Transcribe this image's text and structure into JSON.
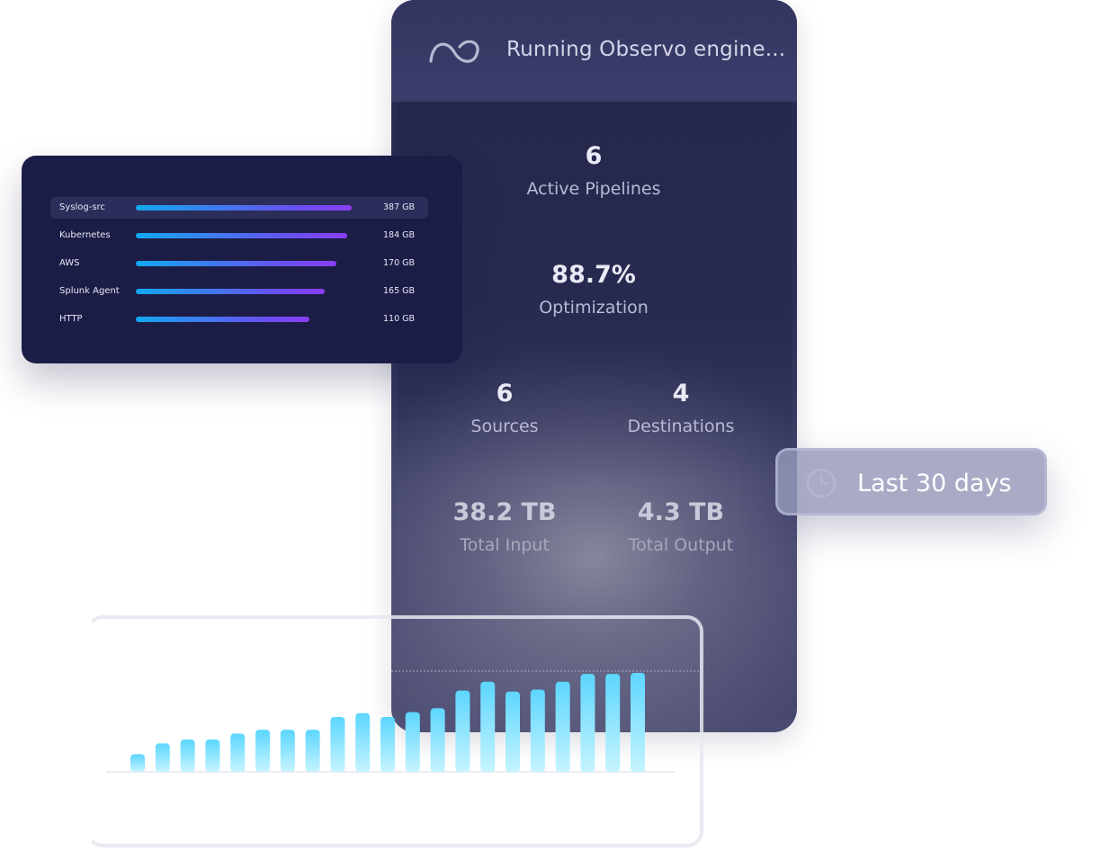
{
  "engine": {
    "title": "Running Observo engine...",
    "logo_icon": "infinity-wave-icon",
    "stats": {
      "active_pipelines": {
        "value": "6",
        "label": "Active Pipelines"
      },
      "optimization": {
        "value": "88.7%",
        "label": "Optimization"
      },
      "sources": {
        "value": "6",
        "label": "Sources"
      },
      "destinations": {
        "value": "4",
        "label": "Destinations"
      },
      "total_input": {
        "value": "38.2 TB",
        "label": "Total Input"
      },
      "total_output": {
        "value": "4.3 TB",
        "label": "Total Output"
      }
    }
  },
  "sources": {
    "rows": [
      {
        "name": "Syslog-src",
        "value": "387 GB",
        "gb": 387
      },
      {
        "name": "Kubernetes",
        "value": "184 GB",
        "gb": 184
      },
      {
        "name": "AWS",
        "value": "170 GB",
        "gb": 170
      },
      {
        "name": "Splunk Agent",
        "value": "165 GB",
        "gb": 165
      },
      {
        "name": "HTTP",
        "value": "110 GB",
        "gb": 110
      }
    ],
    "bar_fraction": [
      0.96,
      0.94,
      0.89,
      0.84,
      0.77
    ],
    "bar_color_start": "#12a8f0",
    "bar_color_end": "#8a3ef5"
  },
  "range": {
    "label": "Last 30 days",
    "icon": "clock-icon"
  },
  "chart_data": {
    "type": "bar",
    "values": [
      18,
      29,
      33,
      33,
      39,
      43,
      43,
      43,
      56,
      60,
      56,
      61,
      65,
      83,
      92,
      82,
      84,
      92,
      100,
      100,
      101
    ],
    "bar_color_top": "#5cd6ff",
    "bar_color_bottom": "#bff3ff"
  }
}
